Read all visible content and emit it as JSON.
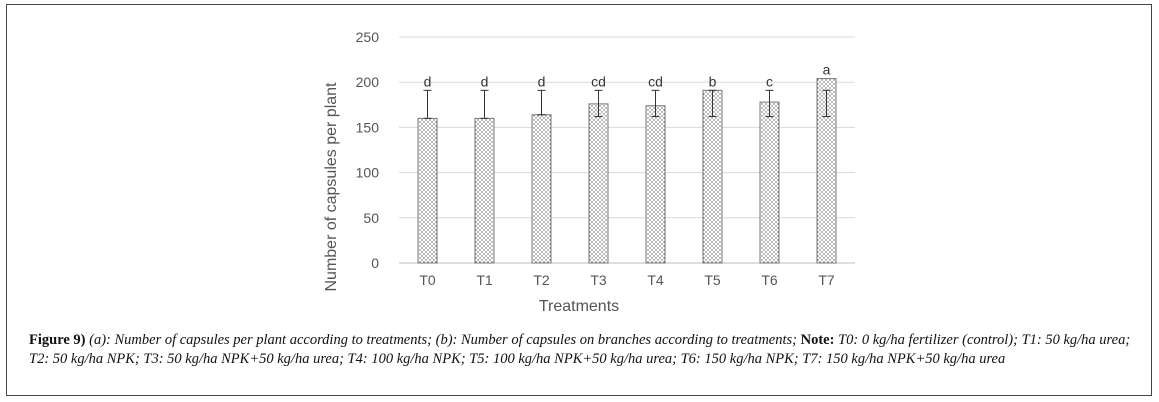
{
  "chart_data": {
    "type": "bar",
    "categories": [
      "T0",
      "T1",
      "T2",
      "T3",
      "T4",
      "T5",
      "T6",
      "T7"
    ],
    "values": [
      160,
      160,
      164,
      176,
      174,
      191,
      178,
      204
    ],
    "error_high": [
      191,
      191,
      191,
      191,
      191,
      191,
      191,
      191
    ],
    "error_low": [
      160,
      160,
      164,
      162,
      162,
      162,
      162,
      162
    ],
    "letters": [
      "d",
      "d",
      "d",
      "cd",
      "cd",
      "b",
      "c",
      "a"
    ],
    "xlabel": "Treatments",
    "ylabel": "Number of capsules per plant",
    "ylim": [
      0,
      250
    ],
    "yticks": [
      "0",
      "50",
      "100",
      "150",
      "200",
      "250"
    ],
    "grid": true,
    "bar_pattern": "dotted"
  },
  "caption": {
    "label": "Figure 9)",
    "text": " (a): Number of capsules per plant according to treatments; (b): Number of capsules on branches according to treatments; ",
    "note_label": "Note:",
    "note_text": " T0: 0 kg/ha fertilizer (control); T1: 50 kg/ha urea; T2: 50 kg/ha NPK; T3: 50 kg/ha NPK+50 kg/ha urea; T4: 100 kg/ha NPK; T5: 100 kg/ha NPK+50 kg/ha urea; T6: 150 kg/ha NPK; T7: 150 kg/ha NPK+50 kg/ha urea"
  }
}
